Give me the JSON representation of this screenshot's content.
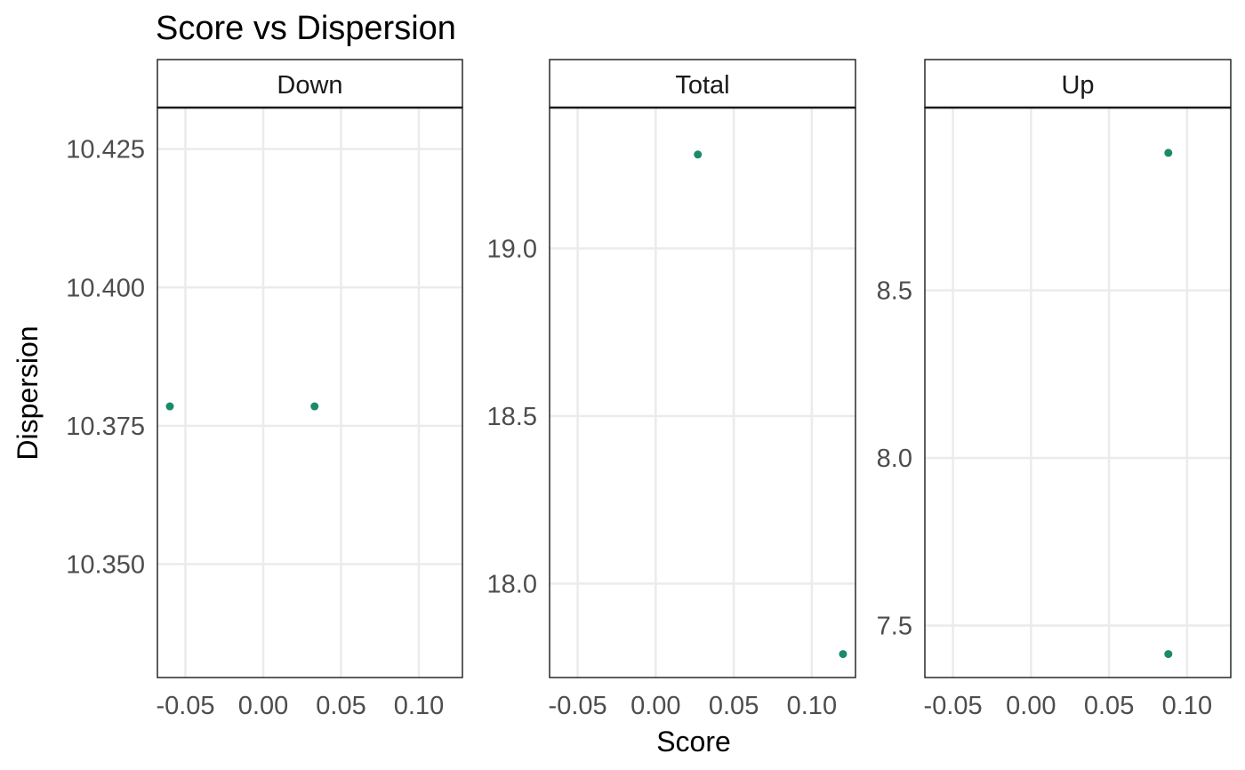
{
  "chart_data": {
    "type": "scatter",
    "title": "Score vs Dispersion",
    "xlabel": "Score",
    "ylabel": "Dispersion",
    "point_color": "#1b8a6b",
    "facets": [
      {
        "label": "Down",
        "xlim": [
          -0.068,
          0.128
        ],
        "ylim": [
          10.3295,
          10.4325
        ],
        "x_ticks": [
          -0.05,
          0.0,
          0.05,
          0.1
        ],
        "x_tick_labels": [
          "-0.05",
          "0.00",
          "0.05",
          "0.10"
        ],
        "y_ticks": [
          10.35,
          10.375,
          10.4,
          10.425
        ],
        "y_tick_labels": [
          "10.350",
          "10.375",
          "10.400",
          "10.425"
        ],
        "points": [
          {
            "x": -0.06,
            "y": 10.3785
          },
          {
            "x": 0.033,
            "y": 10.3785
          }
        ]
      },
      {
        "label": "Total",
        "xlim": [
          -0.068,
          0.128
        ],
        "ylim": [
          17.72,
          19.42
        ],
        "x_ticks": [
          -0.05,
          0.0,
          0.05,
          0.1
        ],
        "x_tick_labels": [
          "-0.05",
          "0.00",
          "0.05",
          "0.10"
        ],
        "y_ticks": [
          18.0,
          18.5,
          19.0
        ],
        "y_tick_labels": [
          "18.0",
          "18.5",
          "19.0"
        ],
        "points": [
          {
            "x": 0.027,
            "y": 19.28
          },
          {
            "x": 0.12,
            "y": 17.79
          }
        ]
      },
      {
        "label": "Up",
        "xlim": [
          -0.068,
          0.128
        ],
        "ylim": [
          7.345,
          9.045
        ],
        "x_ticks": [
          -0.05,
          0.0,
          0.05,
          0.1
        ],
        "x_tick_labels": [
          "-0.05",
          "0.00",
          "0.05",
          "0.10"
        ],
        "y_ticks": [
          7.5,
          8.0,
          8.5
        ],
        "y_tick_labels": [
          "7.5",
          "8.0",
          "8.5"
        ],
        "points": [
          {
            "x": 0.088,
            "y": 8.91
          },
          {
            "x": 0.088,
            "y": 7.415
          }
        ]
      }
    ],
    "grid": true,
    "legend": "none"
  }
}
